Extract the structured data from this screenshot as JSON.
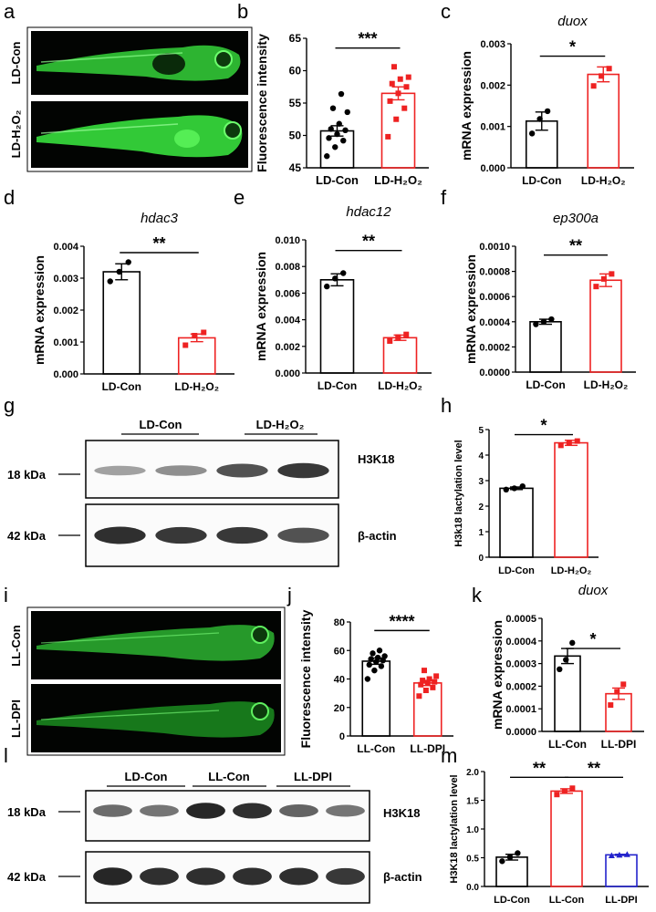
{
  "panel_letters": [
    "a",
    "b",
    "c",
    "d",
    "e",
    "f",
    "g",
    "h",
    "i",
    "j",
    "k",
    "l",
    "m"
  ],
  "colors": {
    "con": "#000000",
    "treat": "#ee2222",
    "dpi": "#2222cc",
    "fluor": "#35d43a"
  },
  "panel_a": {
    "labels": [
      "LD-Con",
      "LD-H₂O₂"
    ]
  },
  "panel_g": {
    "groups": [
      "LD-Con",
      "LD-H₂O₂"
    ],
    "markers": [
      "18 kDa",
      "42 kDa"
    ],
    "bands": [
      "H3K18",
      "β-actin"
    ],
    "h3k18": [
      0.25,
      0.35,
      0.7,
      0.85
    ],
    "actin": [
      0.9,
      0.85,
      0.85,
      0.7
    ]
  },
  "panel_i": {
    "labels": [
      "LL-Con",
      "LL-DPI"
    ]
  },
  "panel_l": {
    "groups": [
      "LD-Con",
      "LL-Con",
      "LL-DPI"
    ],
    "markers": [
      "18 kDa",
      "42 kDa"
    ],
    "bands": [
      "H3K18",
      "β-actin"
    ],
    "h3k18": [
      0.55,
      0.5,
      0.95,
      0.9,
      0.6,
      0.5
    ],
    "actin": [
      0.95,
      0.9,
      0.9,
      0.9,
      0.9,
      0.85
    ]
  },
  "chart_data": [
    {
      "id": "b",
      "type": "bar",
      "title": "",
      "xlabel": "",
      "ylabel": "Fluorescence intensity",
      "categories": [
        "LD-Con",
        "LD-H₂O₂"
      ],
      "ylim": [
        45,
        65
      ],
      "yticks": [
        "45",
        "50",
        "55",
        "60",
        "65"
      ],
      "series": [
        {
          "values": [
            50.7,
            56.5
          ],
          "errors": [
            0.8,
            1.0
          ]
        }
      ],
      "points": [
        [
          46.8,
          48.2,
          49.2,
          49.6,
          50.2,
          50.8,
          51.0,
          51.8,
          53.6,
          54.2,
          56.4
        ],
        [
          49.8,
          52.5,
          54.2,
          55.3,
          56.5,
          57.5,
          58.0,
          58.7,
          59.0,
          60.6
        ]
      ],
      "significance": [
        {
          "from": 0,
          "to": 1,
          "label": "***",
          "y": 63.5
        }
      ]
    },
    {
      "id": "c",
      "type": "bar",
      "title": "duox",
      "xlabel": "",
      "ylabel": "mRNA expression",
      "categories": [
        "LD-Con",
        "LD-H₂O₂"
      ],
      "ylim": [
        0,
        0.003
      ],
      "yticks": [
        "0.000",
        "0.001",
        "0.002",
        "0.003"
      ],
      "series": [
        {
          "values": [
            0.00113,
            0.00226
          ],
          "errors": [
            0.00022,
            0.00018
          ]
        }
      ],
      "points": [
        [
          0.00083,
          0.00118,
          0.00137
        ],
        [
          0.00198,
          0.00222,
          0.0024
        ]
      ],
      "significance": [
        {
          "from": 0,
          "to": 1,
          "label": "*",
          "y": 0.0027
        }
      ]
    },
    {
      "id": "d",
      "type": "bar",
      "title": "hdac3",
      "xlabel": "",
      "ylabel": "mRNA expression",
      "categories": [
        "LD-Con",
        "LD-H₂O₂"
      ],
      "ylim": [
        0,
        0.004
      ],
      "yticks": [
        "0.000",
        "0.001",
        "0.002",
        "0.003",
        "0.004"
      ],
      "series": [
        {
          "values": [
            0.0032,
            0.00113
          ],
          "errors": [
            0.00025,
            0.00012
          ]
        }
      ],
      "points": [
        [
          0.0029,
          0.0032,
          0.0035
        ],
        [
          0.0009,
          0.0012,
          0.0013
        ]
      ],
      "significance": [
        {
          "from": 0,
          "to": 1,
          "label": "**",
          "y": 0.0038
        }
      ]
    },
    {
      "id": "e",
      "type": "bar",
      "title": "hdac12",
      "xlabel": "",
      "ylabel": "mRNA expression",
      "categories": [
        "LD-Con",
        "LD-H₂O₂"
      ],
      "ylim": [
        0,
        0.01
      ],
      "yticks": [
        "0.000",
        "0.002",
        "0.004",
        "0.006",
        "0.008",
        "0.010"
      ],
      "series": [
        {
          "values": [
            0.007,
            0.00265
          ],
          "errors": [
            0.00045,
            0.0002
          ]
        }
      ],
      "points": [
        [
          0.0065,
          0.0071,
          0.0075
        ],
        [
          0.0024,
          0.0027,
          0.0029
        ]
      ],
      "significance": [
        {
          "from": 0,
          "to": 1,
          "label": "**",
          "y": 0.0092
        }
      ]
    },
    {
      "id": "f",
      "type": "bar",
      "title": "ep300a",
      "xlabel": "",
      "ylabel": "mRNA expression",
      "categories": [
        "LD-Con",
        "LD-H₂O₂"
      ],
      "ylim": [
        0,
        0.001
      ],
      "yticks": [
        "0.0000",
        "0.0002",
        "0.0004",
        "0.0006",
        "0.0008",
        "0.0010"
      ],
      "series": [
        {
          "values": [
            0.0004,
            0.00073
          ],
          "errors": [
            2e-05,
            5e-05
          ]
        }
      ],
      "points": [
        [
          0.00038,
          0.0004,
          0.00042
        ],
        [
          0.00068,
          0.00074,
          0.00078
        ]
      ],
      "significance": [
        {
          "from": 0,
          "to": 1,
          "label": "**",
          "y": 0.00093
        }
      ]
    },
    {
      "id": "h",
      "type": "bar",
      "title": "",
      "xlabel": "",
      "ylabel": "H3k18 lactylation level",
      "categories": [
        "LD-Con",
        "LD-H₂O₂"
      ],
      "ylim": [
        0,
        5
      ],
      "yticks": [
        "0",
        "1",
        "2",
        "3",
        "4",
        "5"
      ],
      "series": [
        {
          "values": [
            2.7,
            4.48
          ],
          "errors": [
            0.05,
            0.1
          ]
        }
      ],
      "points": [
        [
          2.65,
          2.7,
          2.78
        ],
        [
          4.38,
          4.48,
          4.55
        ]
      ],
      "significance": [
        {
          "from": 0,
          "to": 1,
          "label": "*",
          "y": 4.8
        }
      ]
    },
    {
      "id": "j",
      "type": "bar",
      "title": "",
      "xlabel": "",
      "ylabel": "Fluorescence intensity",
      "categories": [
        "LL-Con",
        "LL-DPI"
      ],
      "ylim": [
        0,
        80
      ],
      "yticks": [
        "0",
        "20",
        "40",
        "60",
        "80"
      ],
      "series": [
        {
          "values": [
            52.5,
            37.2
          ],
          "errors": [
            2.2,
            1.8
          ]
        }
      ],
      "points": [
        [
          40,
          46,
          49,
          50,
          52,
          53,
          54,
          55,
          56,
          58,
          60
        ],
        [
          28,
          32,
          34,
          36,
          37,
          38,
          39,
          40,
          42,
          46
        ]
      ],
      "significance": [
        {
          "from": 0,
          "to": 1,
          "label": "****",
          "y": 74
        }
      ]
    },
    {
      "id": "k",
      "type": "bar",
      "title": "duox",
      "xlabel": "",
      "ylabel": "mRNA expression",
      "categories": [
        "LL-Con",
        "LL-DPI"
      ],
      "ylim": [
        0,
        0.0006
      ],
      "yticks": [
        "0.0000",
        "0.0001",
        "0.0002",
        "0.0003",
        "0.0004",
        "0.0005"
      ],
      "series": [
        {
          "values": [
            0.0004,
            0.0002
          ],
          "errors": [
            4e-05,
            3e-05
          ]
        }
      ],
      "points": [
        [
          0.00033,
          0.00038,
          0.00047
        ],
        [
          0.00014,
          0.00021,
          0.00025
        ]
      ],
      "significance": [
        {
          "from": 0,
          "to": 1,
          "label": "*",
          "y": 0.00044
        }
      ]
    },
    {
      "id": "m",
      "type": "bar",
      "title": "",
      "xlabel": "",
      "ylabel": "H3K18 lactylation level",
      "categories": [
        "LD-Con",
        "LL-Con",
        "LL-DPI"
      ],
      "ylim": [
        0,
        2.0
      ],
      "yticks": [
        "0.0",
        "0.5",
        "1.0",
        "1.5",
        "2.0"
      ],
      "series": [
        {
          "values": [
            0.51,
            1.66,
            0.55
          ],
          "errors": [
            0.05,
            0.04,
            0.01
          ]
        }
      ],
      "points": [
        [
          0.44,
          0.51,
          0.58
        ],
        [
          1.6,
          1.66,
          1.71
        ],
        [
          0.54,
          0.55,
          0.56
        ]
      ],
      "significance": [
        {
          "from": 0,
          "to": 1,
          "label": "**",
          "y": 1.9
        },
        {
          "from": 1,
          "to": 2,
          "label": "**",
          "y": 1.9
        }
      ]
    }
  ]
}
